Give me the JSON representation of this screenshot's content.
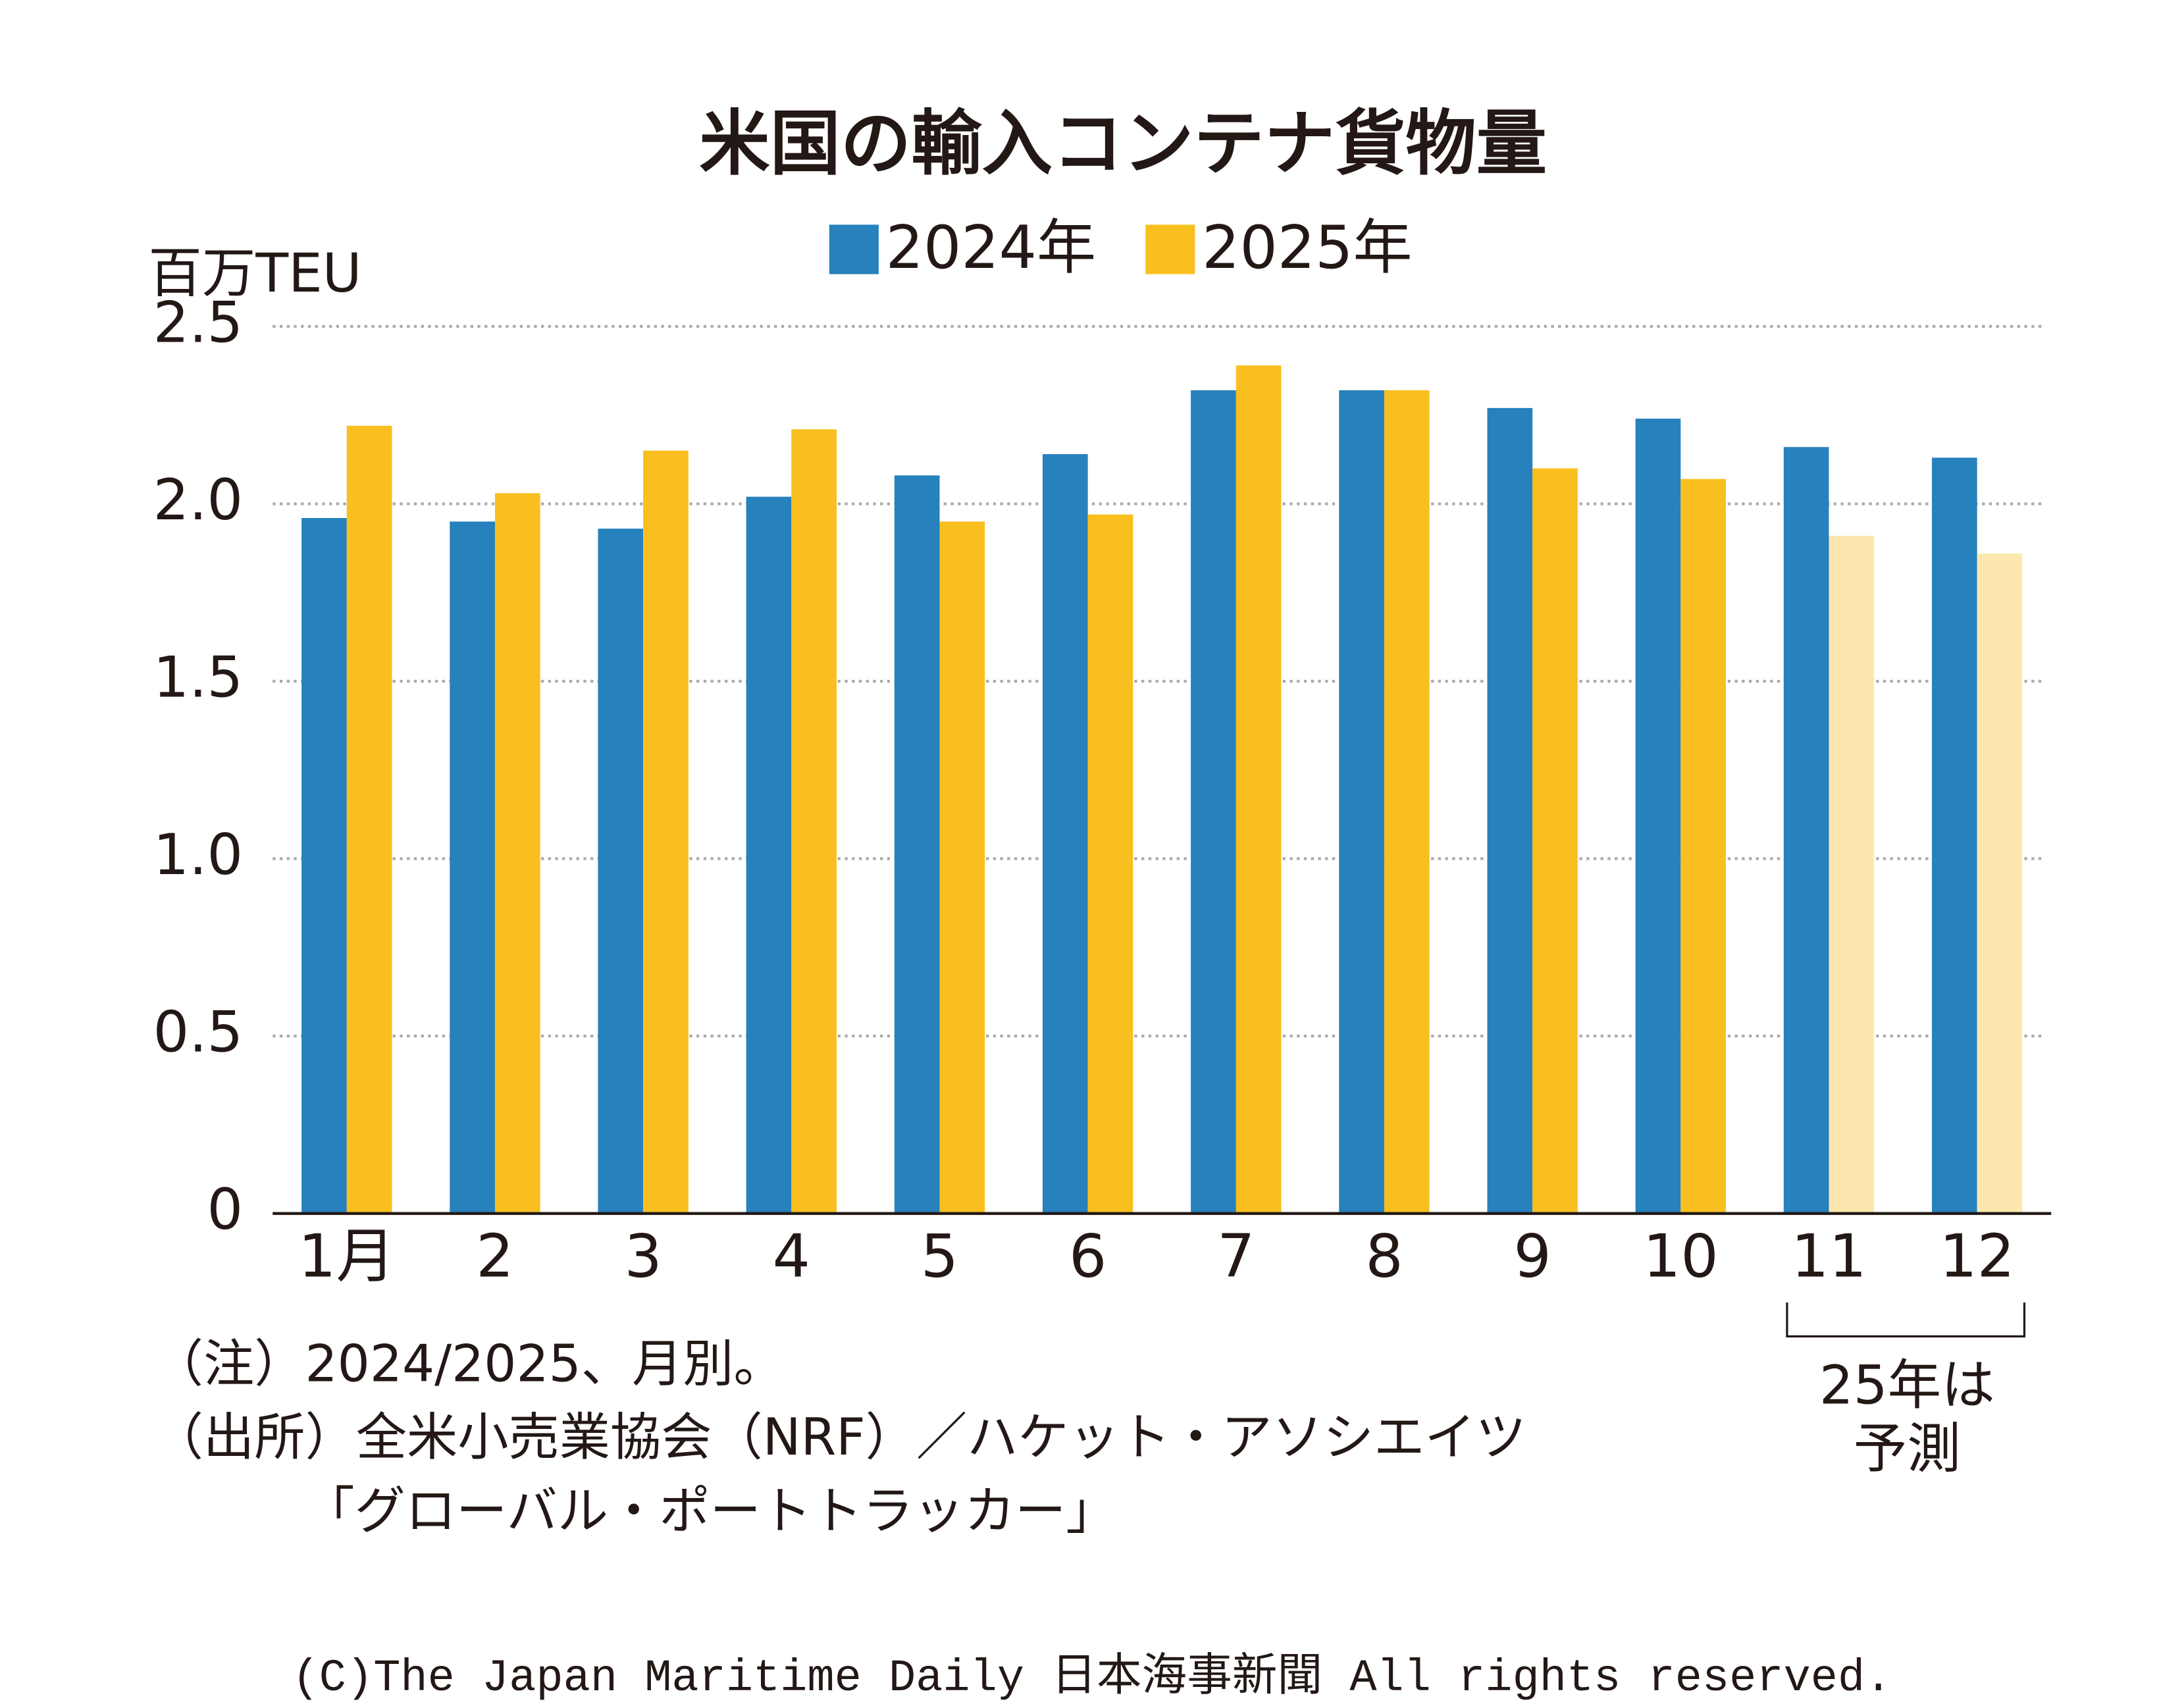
{
  "chart_data": {
    "type": "bar",
    "title": "米国の輸入コンテナ貨物量",
    "y_label": "百万TEU",
    "categories": [
      "1月",
      "2",
      "3",
      "4",
      "5",
      "6",
      "7",
      "8",
      "9",
      "10",
      "11",
      "12"
    ],
    "series": [
      {
        "name": "2024年",
        "color": "#2681bd",
        "values": [
          1.96,
          1.95,
          1.93,
          2.02,
          2.08,
          2.14,
          2.32,
          2.32,
          2.27,
          2.24,
          2.16,
          2.13
        ]
      },
      {
        "name": "2025年",
        "color": "#f8bf1f",
        "values": [
          2.22,
          2.03,
          2.15,
          2.21,
          1.95,
          1.97,
          2.39,
          2.32,
          2.1,
          2.07,
          1.91,
          1.86
        ],
        "colors": [
          "#f8bf1f",
          "#f8bf1f",
          "#f8bf1f",
          "#f8bf1f",
          "#f8bf1f",
          "#f8bf1f",
          "#f8bf1f",
          "#f8bf1f",
          "#f8bf1f",
          "#f8bf1f",
          "#fce8ae",
          "#fce8ae"
        ]
      }
    ],
    "ylim": [
      0,
      2.5
    ],
    "yticks": [
      0,
      0.5,
      {
        "value": 1.0,
        "label": "1.0"
      },
      1.5,
      {
        "value": 2.0,
        "label": "2.0"
      },
      2.5
    ],
    "grid": true,
    "annotation": [
      "25年は",
      "予測"
    ],
    "notes": [
      "（注）2024/2025、月別。",
      "（出所）全米小売業協会（NRF）／ハケット・アソシエイツ",
      "「グローバル・ポートトラッカー」"
    ],
    "copyright": "(C)The Japan Maritime Daily 日本海事新聞 All rights reserved."
  }
}
